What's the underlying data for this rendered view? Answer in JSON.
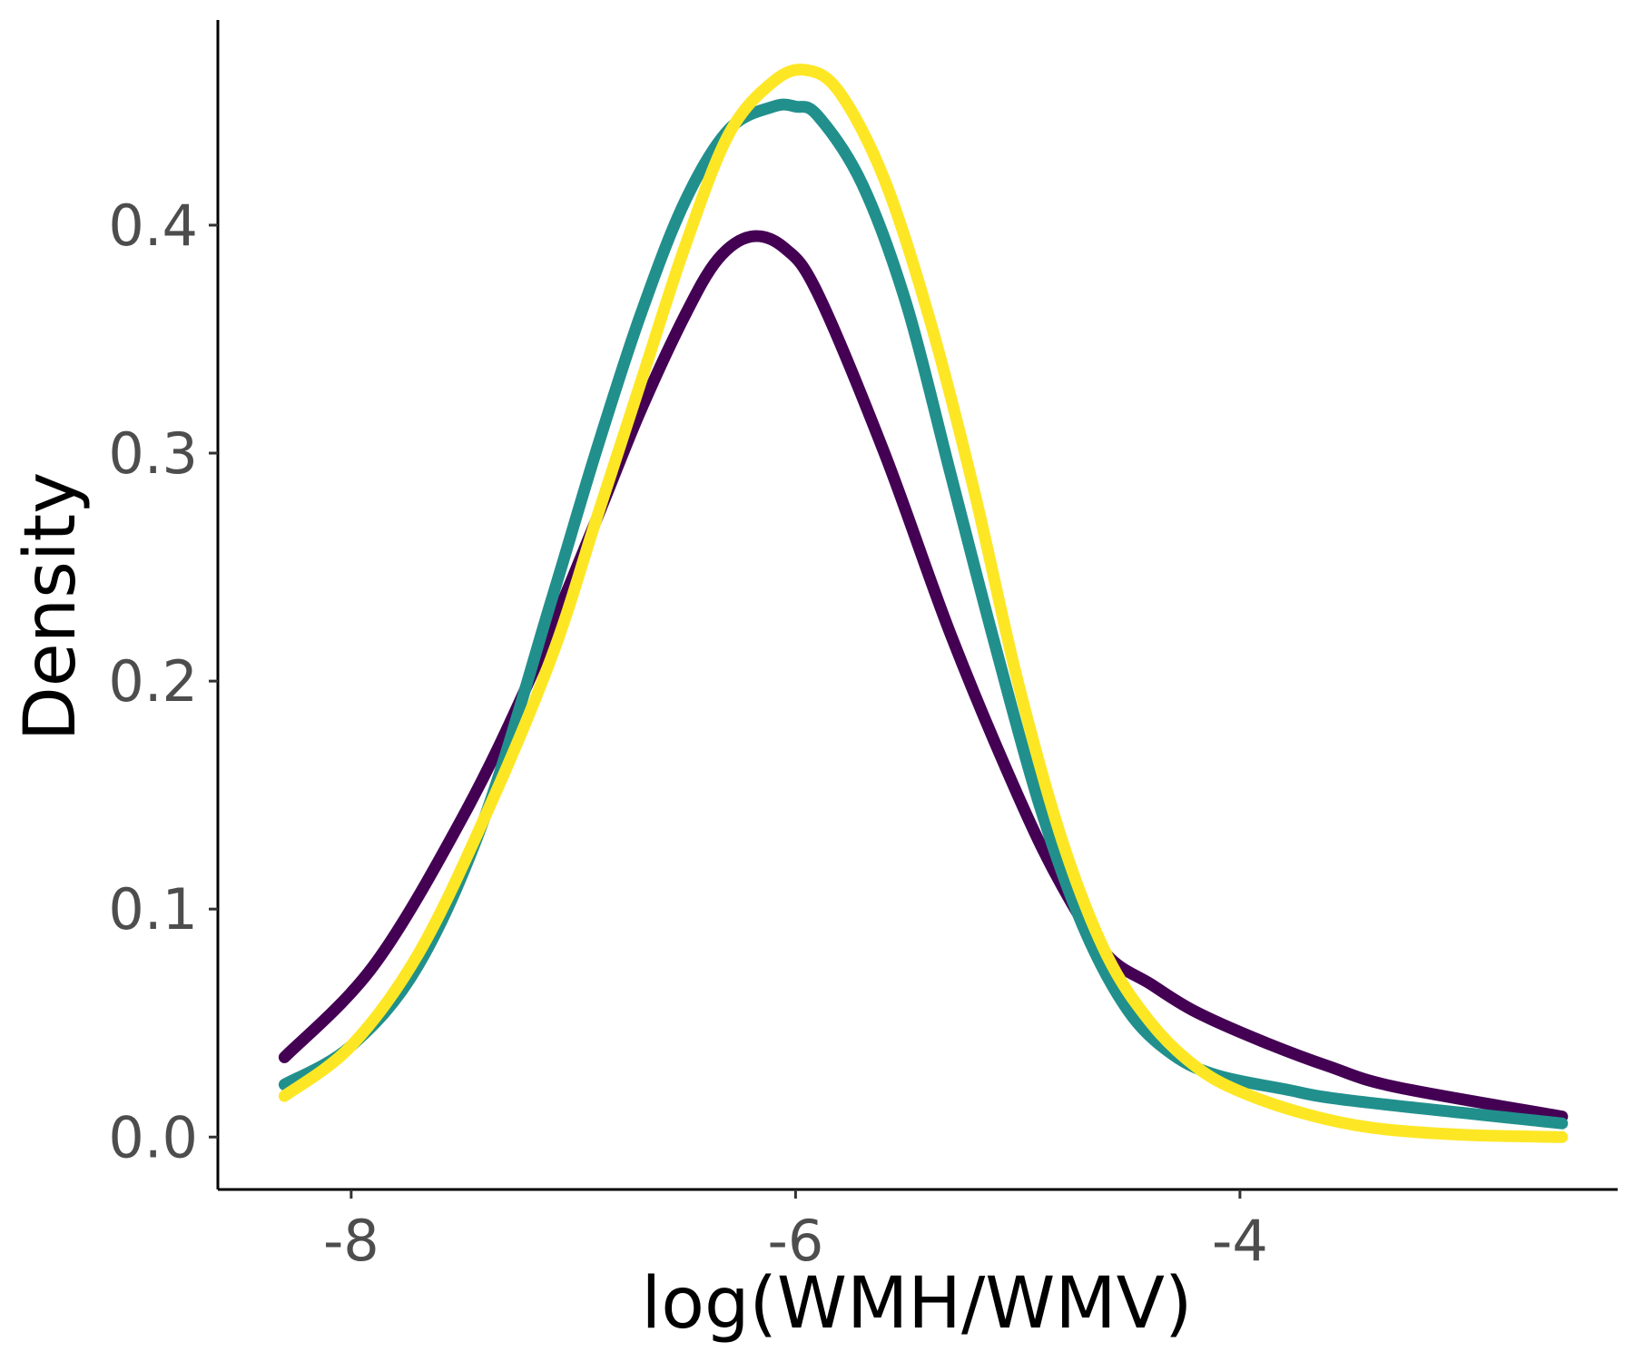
{
  "chart_data": {
    "type": "line",
    "title": "",
    "xlabel": "log(WMH/WMV)",
    "ylabel": "Density",
    "xlim": [
      -8.6,
      -2.3
    ],
    "ylim": [
      -0.023,
      0.49
    ],
    "x_ticks": [
      -8,
      -6,
      -4
    ],
    "x_tick_labels": [
      "-8",
      "-6",
      "-4"
    ],
    "y_ticks": [
      0.0,
      0.1,
      0.2,
      0.3,
      0.4
    ],
    "y_tick_labels": [
      "0.0",
      "0.1",
      "0.2",
      "0.3",
      "0.4"
    ],
    "grid": false,
    "legend": "none",
    "series": [
      {
        "color": "#440154",
        "x": [
          -8.3,
          -7.9,
          -7.5,
          -7.2,
          -6.9,
          -6.7,
          -6.5,
          -6.35,
          -6.2,
          -6.05,
          -5.9,
          -5.6,
          -5.3,
          -5.0,
          -4.8,
          -4.6,
          -4.4,
          -4.2,
          -3.9,
          -3.6,
          -3.3,
          -2.55
        ],
        "y": [
          0.035,
          0.075,
          0.14,
          0.2,
          0.27,
          0.318,
          0.36,
          0.385,
          0.395,
          0.39,
          0.37,
          0.3,
          0.22,
          0.15,
          0.11,
          0.08,
          0.067,
          0.055,
          0.042,
          0.031,
          0.022,
          0.009
        ]
      },
      {
        "color": "#21908C",
        "x": [
          -8.3,
          -8.0,
          -7.7,
          -7.4,
          -7.1,
          -6.9,
          -6.7,
          -6.5,
          -6.3,
          -6.1,
          -6.0,
          -5.9,
          -5.7,
          -5.5,
          -5.3,
          -5.1,
          -4.9,
          -4.7,
          -4.5,
          -4.3,
          -4.1,
          -3.8,
          -3.5,
          -2.55
        ],
        "y": [
          0.023,
          0.04,
          0.075,
          0.14,
          0.235,
          0.3,
          0.36,
          0.41,
          0.442,
          0.452,
          0.452,
          0.448,
          0.418,
          0.365,
          0.29,
          0.215,
          0.145,
          0.091,
          0.055,
          0.036,
          0.027,
          0.021,
          0.016,
          0.006
        ]
      },
      {
        "color": "#FDE725",
        "x": [
          -8.3,
          -8.0,
          -7.7,
          -7.4,
          -7.1,
          -6.9,
          -6.7,
          -6.5,
          -6.3,
          -6.1,
          -5.95,
          -5.8,
          -5.6,
          -5.4,
          -5.2,
          -5.0,
          -4.8,
          -4.6,
          -4.4,
          -4.2,
          -4.0,
          -3.7,
          -3.4,
          -3.0,
          -2.55
        ],
        "y": [
          0.018,
          0.04,
          0.08,
          0.14,
          0.21,
          0.27,
          0.33,
          0.39,
          0.44,
          0.463,
          0.468,
          0.458,
          0.42,
          0.36,
          0.285,
          0.2,
          0.13,
          0.08,
          0.05,
          0.031,
          0.02,
          0.01,
          0.004,
          0.001,
          0.0
        ]
      }
    ]
  }
}
